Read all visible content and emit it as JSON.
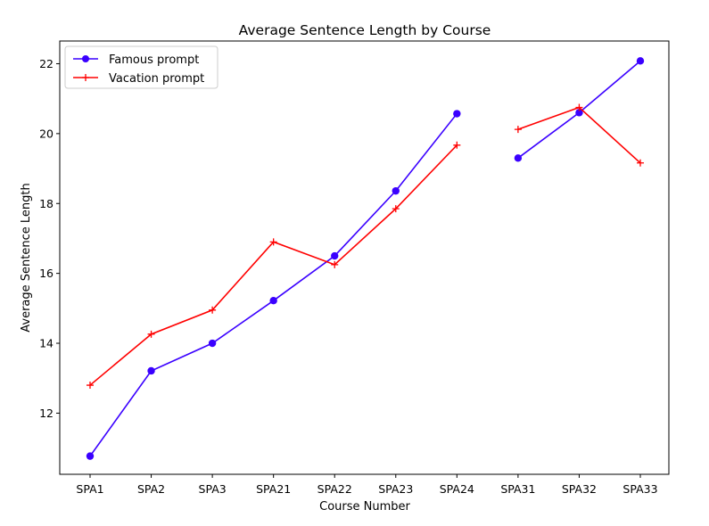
{
  "chart_data": {
    "type": "line",
    "title": "Average Sentence Length by Course",
    "xlabel": "Course Number",
    "ylabel": "Average Sentence Length",
    "categories": [
      "SPA1",
      "SPA2",
      "SPA3",
      "SPA21",
      "SPA22",
      "SPA23",
      "SPA24",
      "SPA31",
      "SPA32",
      "SPA33"
    ],
    "ylim": [
      10.25,
      22.65
    ],
    "yticks": [
      12,
      14,
      16,
      18,
      20,
      22
    ],
    "grid": false,
    "legend_position": "top-left",
    "series": [
      {
        "name": "Famous prompt",
        "color": "#3a00ff",
        "marker": "circle",
        "segments": [
          [
            0,
            6
          ],
          [
            7,
            9
          ]
        ],
        "values": [
          10.77,
          13.21,
          14.0,
          15.22,
          16.5,
          18.36,
          20.57,
          19.3,
          20.6,
          22.08
        ]
      },
      {
        "name": "Vacation prompt",
        "color": "#ff0000",
        "marker": "plus",
        "segments": [
          [
            0,
            6
          ],
          [
            7,
            9
          ]
        ],
        "values": [
          12.8,
          14.26,
          14.95,
          16.9,
          16.25,
          17.85,
          19.67,
          20.12,
          20.75,
          19.16
        ]
      }
    ]
  }
}
